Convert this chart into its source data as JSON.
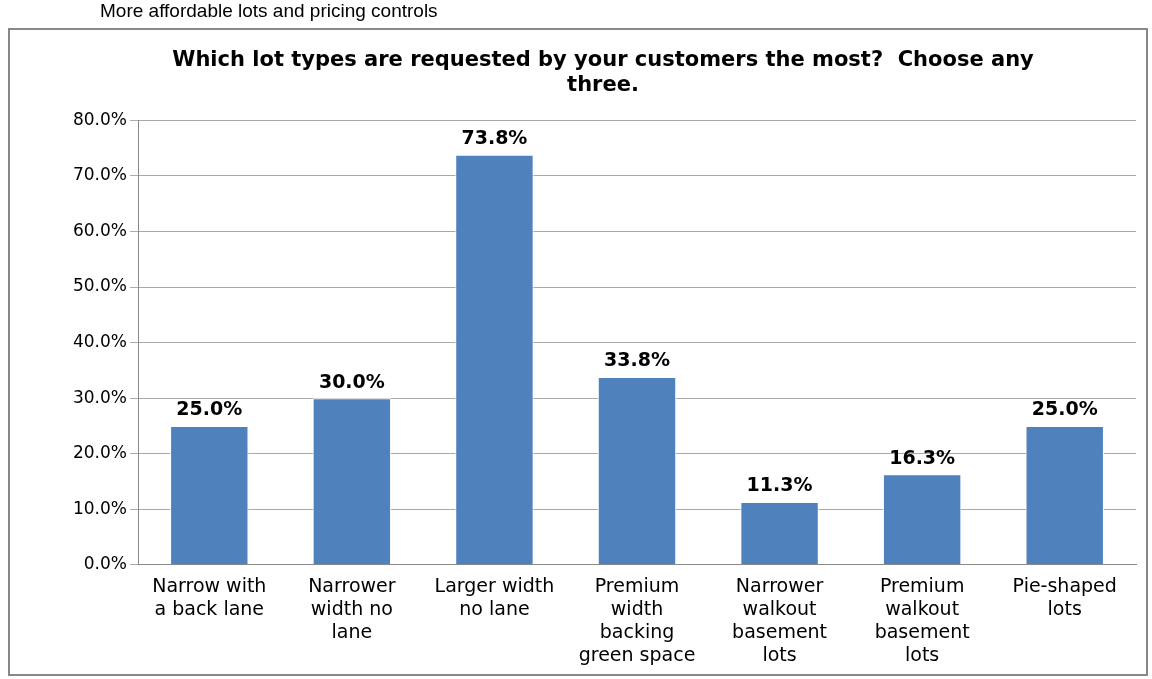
{
  "chart_data": {
    "type": "bar",
    "title": "Which lot types are requested by your customers the most?  Choose any three.",
    "annotations": [
      "More affordable lots and pricing controls"
    ],
    "categories": [
      "Narrow with a back lane",
      "Narrower width no lane",
      "Larger width no lane",
      "Premium width backing green space",
      "Narrower walkout basement lots",
      "Premium walkout basement lots",
      "Pie-shaped lots"
    ],
    "values": [
      25.0,
      30.0,
      73.8,
      33.8,
      11.3,
      16.3,
      25.0
    ],
    "value_labels": [
      "25.0%",
      "30.0%",
      "73.8%",
      "33.8%",
      "11.3%",
      "16.3%",
      "25.0%"
    ],
    "color": "#4f81bd",
    "ylim": [
      0,
      80
    ],
    "yticks": [
      {
        "value": 0,
        "label": "0.0%"
      },
      {
        "value": 10,
        "label": "10.0%"
      },
      {
        "value": 20,
        "label": "20.0%"
      },
      {
        "value": 30,
        "label": "30.0%"
      },
      {
        "value": 40,
        "label": "40.0%"
      },
      {
        "value": 50,
        "label": "50.0%"
      },
      {
        "value": 60,
        "label": "60.0%"
      },
      {
        "value": 70,
        "label": "70.0%"
      },
      {
        "value": 80,
        "label": "80.0%"
      }
    ],
    "grid": "y",
    "legend": false
  }
}
